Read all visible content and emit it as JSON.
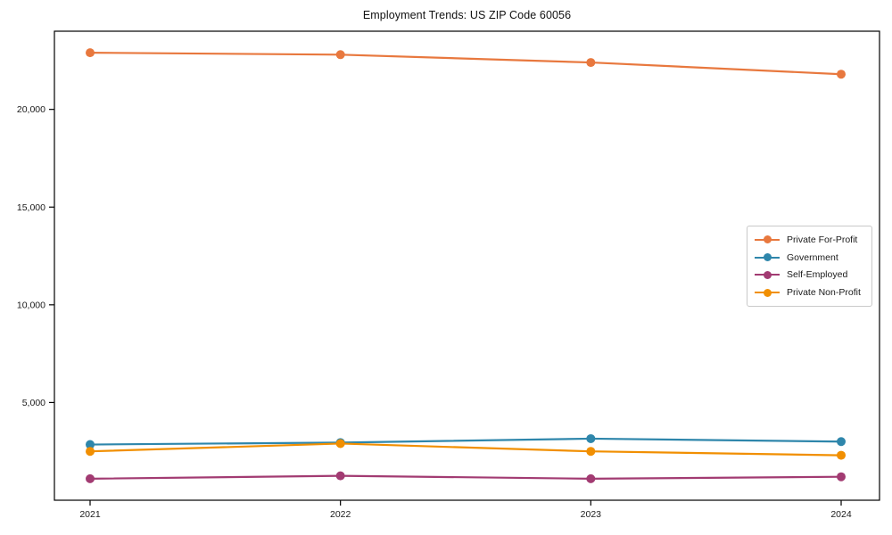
{
  "chart_data": {
    "type": "line",
    "title": "Employment Trends: US ZIP Code 60056",
    "xlabel": "",
    "ylabel": "",
    "categories": [
      "2021",
      "2022",
      "2023",
      "2024"
    ],
    "series": [
      {
        "name": "Private For-Profit",
        "color": "#E8783E",
        "values": [
          22900,
          22800,
          22400,
          21800
        ]
      },
      {
        "name": "Government",
        "color": "#2E86AB",
        "values": [
          2850,
          2950,
          3150,
          3000
        ]
      },
      {
        "name": "Self-Employed",
        "color": "#A23B72",
        "values": [
          1100,
          1250,
          1100,
          1200
        ]
      },
      {
        "name": "Private Non-Profit",
        "color": "#F18F01",
        "values": [
          2500,
          2900,
          2500,
          2300
        ]
      }
    ],
    "yticks": [
      {
        "value": 5000,
        "label": "5,000"
      },
      {
        "value": 10000,
        "label": "10,000"
      },
      {
        "value": 15000,
        "label": "15,000"
      },
      {
        "value": 20000,
        "label": "20,000"
      }
    ],
    "ylim": [
      0,
      24000
    ],
    "grid": false,
    "legend_position": "center-right",
    "marker": "circle",
    "axis_color": "#000000"
  }
}
